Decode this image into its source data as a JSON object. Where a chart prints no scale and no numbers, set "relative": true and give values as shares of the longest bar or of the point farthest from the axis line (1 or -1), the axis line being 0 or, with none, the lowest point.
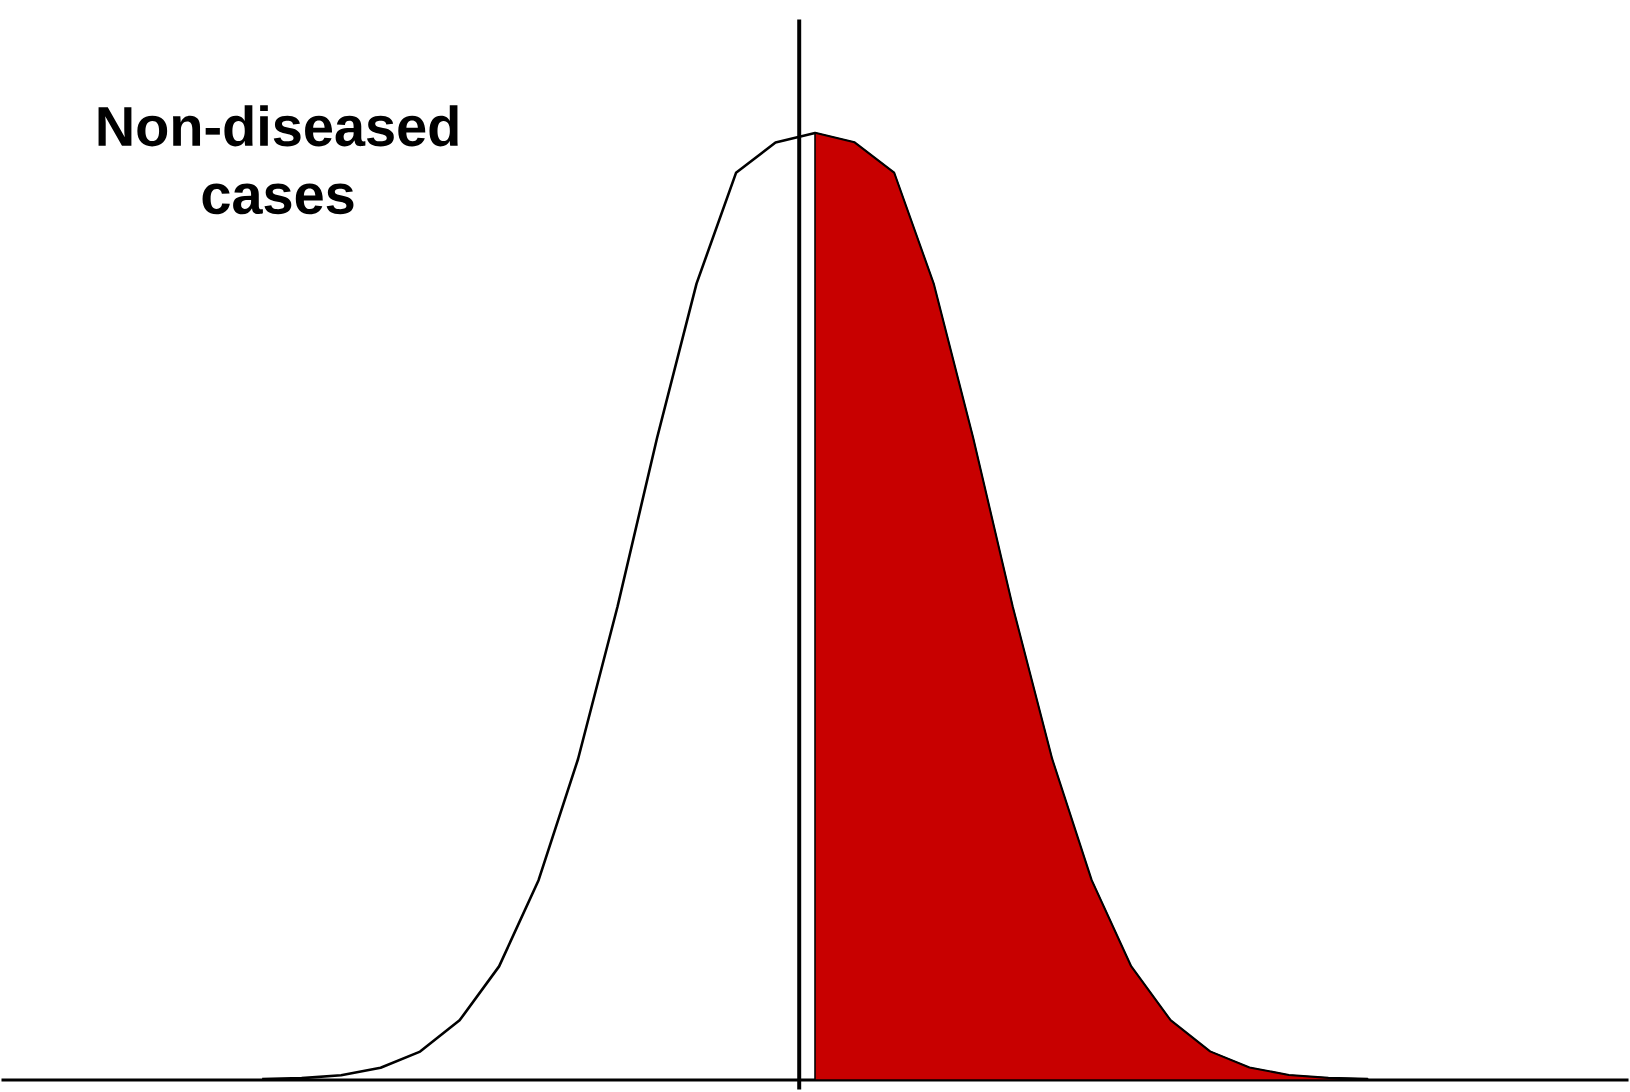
{
  "chart_data": {
    "type": "area",
    "relative": true,
    "categories": [
      null,
      null,
      null,
      null,
      null,
      null,
      null,
      null,
      null,
      null,
      null,
      null,
      null,
      null,
      null,
      null,
      null,
      null,
      null,
      null,
      null,
      null,
      null,
      null,
      null,
      null,
      null,
      null,
      null,
      null,
      null,
      null,
      null,
      null,
      null,
      null,
      null,
      null,
      null,
      null,
      null
    ],
    "series": [
      {
        "type": "line",
        "color": "#000000",
        "values": [
          null,
          null,
          null,
          null,
          null,
          null,
          0.001,
          0.002,
          0.005,
          0.013,
          0.03,
          0.063,
          0.12,
          0.211,
          0.339,
          0.5,
          0.678,
          0.841,
          0.958,
          0.99,
          1,
          0.99,
          0.958,
          0.841,
          0.678,
          0.5,
          0.339,
          0.211,
          0.12,
          0.063,
          0.03,
          0.013,
          0.005,
          0.002,
          0.001,
          null,
          null,
          null,
          null,
          null,
          null
        ]
      },
      {
        "color": "#c80000",
        "values": [
          null,
          null,
          null,
          null,
          null,
          null,
          null,
          null,
          null,
          null,
          null,
          null,
          null,
          null,
          null,
          null,
          null,
          null,
          null,
          null,
          1,
          0.99,
          0.958,
          0.841,
          0.678,
          0.5,
          0.339,
          0.211,
          0.12,
          0.063,
          0.03,
          0.013,
          0.005,
          0.002,
          0.001,
          null,
          null,
          null,
          null,
          null,
          null
        ]
      }
    ],
    "annotations": [
      "Non-diseased cases"
    ]
  }
}
